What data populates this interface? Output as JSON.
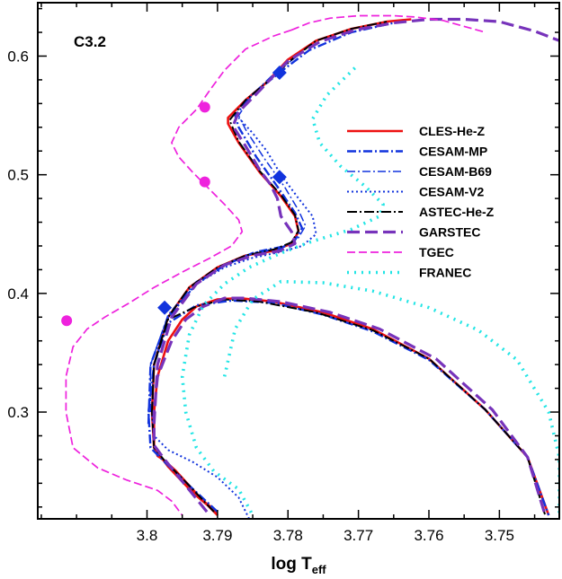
{
  "chart_data": {
    "type": "line",
    "title": "",
    "annotation": "C3.2",
    "xlabel_main": "log T",
    "xlabel_sub": "eff",
    "ylabel": "",
    "xlim": [
      3.8155,
      3.7415
    ],
    "ylim": [
      0.21,
      0.645
    ],
    "xticks": [
      3.8,
      3.79,
      3.78,
      3.77,
      3.76,
      3.75
    ],
    "xtick_labels": [
      "3.8",
      "3.79",
      "3.78",
      "3.77",
      "3.76",
      "3.75"
    ],
    "yticks": [
      0.3,
      0.4,
      0.5,
      0.6
    ],
    "ytick_labels": [
      "0.3",
      "0.4",
      "0.5",
      "0.6"
    ],
    "grid": false,
    "legend_position": "right",
    "series": [
      {
        "name": "CLES-He-Z",
        "color": "#ee1111",
        "dash": "",
        "width": 2.6,
        "points": [
          [
            3.79,
            0.213
          ],
          [
            3.7905,
            0.218
          ],
          [
            3.792,
            0.225
          ],
          [
            3.794,
            0.238
          ],
          [
            3.796,
            0.251
          ],
          [
            3.7975,
            0.259
          ],
          [
            3.7985,
            0.263
          ],
          [
            3.799,
            0.272
          ],
          [
            3.799,
            0.3
          ],
          [
            3.7985,
            0.33
          ],
          [
            3.797,
            0.36
          ],
          [
            3.795,
            0.378
          ],
          [
            3.793,
            0.389
          ],
          [
            3.79,
            0.395
          ],
          [
            3.787,
            0.396
          ],
          [
            3.782,
            0.393
          ],
          [
            3.775,
            0.384
          ],
          [
            3.768,
            0.37
          ],
          [
            3.76,
            0.345
          ],
          [
            3.752,
            0.302
          ],
          [
            3.746,
            0.262
          ],
          [
            3.743,
            0.213
          ],
          null,
          [
            3.79,
            0.213
          ],
          [
            3.7915,
            0.222
          ],
          [
            3.7935,
            0.232
          ],
          [
            3.797,
            0.254
          ],
          [
            3.799,
            0.27
          ],
          [
            3.7993,
            0.3
          ],
          [
            3.799,
            0.34
          ],
          [
            3.797,
            0.38
          ],
          [
            3.794,
            0.405
          ],
          [
            3.79,
            0.422
          ],
          [
            3.786,
            0.432
          ],
          [
            3.782,
            0.436
          ],
          [
            3.7795,
            0.442
          ],
          [
            3.7785,
            0.452
          ],
          [
            3.779,
            0.465
          ],
          [
            3.781,
            0.482
          ],
          [
            3.784,
            0.502
          ],
          [
            3.787,
            0.527
          ],
          [
            3.7885,
            0.543
          ],
          [
            3.7885,
            0.548
          ],
          [
            3.786,
            0.563
          ],
          [
            3.783,
            0.578
          ],
          [
            3.78,
            0.597
          ],
          [
            3.776,
            0.613
          ],
          [
            3.771,
            0.623
          ],
          [
            3.766,
            0.629
          ],
          [
            3.7625,
            0.631
          ]
        ]
      },
      {
        "name": "CESAM-MP",
        "color": "#1133dd",
        "dash": "10,3,2,3",
        "width": 2.4,
        "points": [
          [
            3.79,
            0.216
          ],
          [
            3.794,
            0.238
          ],
          [
            3.7975,
            0.258
          ],
          [
            3.7995,
            0.27
          ],
          [
            3.7998,
            0.3
          ],
          [
            3.799,
            0.34
          ],
          [
            3.797,
            0.375
          ],
          [
            3.793,
            0.39
          ],
          [
            3.788,
            0.394
          ],
          [
            3.782,
            0.392
          ],
          [
            3.775,
            0.382
          ],
          [
            3.768,
            0.368
          ],
          [
            3.76,
            0.344
          ],
          [
            3.752,
            0.302
          ],
          [
            3.746,
            0.262
          ],
          [
            3.743,
            0.213
          ],
          null,
          [
            3.7998,
            0.29
          ],
          [
            3.7995,
            0.34
          ],
          [
            3.797,
            0.38
          ],
          [
            3.793,
            0.408
          ],
          [
            3.789,
            0.424
          ],
          [
            3.785,
            0.434
          ],
          [
            3.781,
            0.438
          ],
          [
            3.779,
            0.445
          ],
          [
            3.778,
            0.455
          ],
          [
            3.779,
            0.468
          ],
          [
            3.7815,
            0.49
          ],
          [
            3.7845,
            0.515
          ],
          [
            3.787,
            0.54
          ],
          [
            3.7875,
            0.55
          ],
          [
            3.785,
            0.568
          ],
          [
            3.781,
            0.587
          ],
          [
            3.777,
            0.605
          ],
          [
            3.771,
            0.62
          ],
          [
            3.765,
            0.628
          ]
        ]
      },
      {
        "name": "CESAM-B69",
        "color": "#1133dd",
        "dash": "9,3,2,3",
        "width": 1.5,
        "points": [
          [
            3.7995,
            0.3
          ],
          [
            3.7995,
            0.34
          ],
          [
            3.797,
            0.382
          ],
          [
            3.793,
            0.41
          ],
          [
            3.788,
            0.426
          ],
          [
            3.784,
            0.436
          ],
          [
            3.7805,
            0.44
          ],
          [
            3.7785,
            0.447
          ],
          [
            3.7775,
            0.457
          ],
          [
            3.7785,
            0.47
          ],
          [
            3.7805,
            0.49
          ],
          [
            3.7835,
            0.515
          ],
          [
            3.786,
            0.538
          ],
          [
            3.787,
            0.55
          ],
          [
            3.785,
            0.568
          ],
          [
            3.782,
            0.585
          ],
          [
            3.778,
            0.603
          ]
        ]
      },
      {
        "name": "CESAM-V2",
        "color": "#1133dd",
        "dash": "2,3",
        "width": 2,
        "points": [
          [
            3.7855,
            0.21
          ],
          [
            3.787,
            0.228
          ],
          [
            3.79,
            0.245
          ],
          [
            3.7935,
            0.258
          ],
          [
            3.797,
            0.268
          ],
          [
            3.799,
            0.28
          ],
          [
            3.7993,
            0.3
          ],
          [
            3.799,
            0.34
          ],
          [
            3.797,
            0.38
          ],
          [
            3.793,
            0.408
          ],
          [
            3.789,
            0.422
          ],
          [
            3.785,
            0.43
          ],
          [
            3.781,
            0.435
          ],
          [
            3.778,
            0.44
          ],
          [
            3.776,
            0.45
          ],
          [
            3.7765,
            0.465
          ],
          [
            3.7785,
            0.48
          ],
          [
            3.781,
            0.5
          ],
          [
            3.783,
            0.52
          ],
          [
            3.785,
            0.535
          ],
          [
            3.787,
            0.548
          ]
        ]
      },
      {
        "name": "ASTEC-He-Z",
        "color": "#000000",
        "dash": "11,3,2,3",
        "width": 2,
        "points": [
          [
            3.7905,
            0.216
          ],
          [
            3.794,
            0.238
          ],
          [
            3.7975,
            0.259
          ],
          [
            3.799,
            0.27
          ],
          [
            3.7993,
            0.3
          ],
          [
            3.799,
            0.34
          ],
          [
            3.797,
            0.378
          ],
          [
            3.793,
            0.389
          ],
          [
            3.789,
            0.395
          ],
          [
            3.784,
            0.393
          ],
          [
            3.776,
            0.384
          ],
          [
            3.768,
            0.369
          ],
          [
            3.76,
            0.345
          ],
          [
            3.752,
            0.302
          ],
          [
            3.746,
            0.262
          ],
          [
            3.7435,
            0.213
          ],
          null,
          [
            3.7993,
            0.3
          ],
          [
            3.799,
            0.34
          ],
          [
            3.797,
            0.38
          ],
          [
            3.794,
            0.405
          ],
          [
            3.79,
            0.422
          ],
          [
            3.786,
            0.432
          ],
          [
            3.782,
            0.437
          ],
          [
            3.7795,
            0.443
          ],
          [
            3.7785,
            0.453
          ],
          [
            3.779,
            0.466
          ],
          [
            3.781,
            0.483
          ],
          [
            3.784,
            0.503
          ],
          [
            3.787,
            0.528
          ],
          [
            3.7883,
            0.546
          ],
          [
            3.786,
            0.563
          ],
          [
            3.783,
            0.578
          ],
          [
            3.7795,
            0.597
          ],
          [
            3.776,
            0.613
          ],
          [
            3.771,
            0.623
          ],
          [
            3.766,
            0.629
          ]
        ]
      },
      {
        "name": "GARSTEC",
        "color": "#7733bb",
        "dash": "14,6",
        "width": 3.2,
        "points": [
          [
            3.7915,
            0.216
          ],
          [
            3.7945,
            0.238
          ],
          [
            3.7975,
            0.26
          ],
          [
            3.799,
            0.272
          ],
          [
            3.799,
            0.3
          ],
          [
            3.7985,
            0.33
          ],
          [
            3.7965,
            0.36
          ],
          [
            3.7945,
            0.378
          ],
          [
            3.792,
            0.389
          ],
          [
            3.789,
            0.396
          ],
          [
            3.786,
            0.396
          ],
          [
            3.781,
            0.393
          ],
          [
            3.774,
            0.384
          ],
          [
            3.767,
            0.37
          ],
          [
            3.759,
            0.345
          ],
          [
            3.751,
            0.302
          ],
          [
            3.746,
            0.262
          ],
          [
            3.7435,
            0.213
          ],
          null,
          [
            3.799,
            0.29
          ],
          [
            3.7985,
            0.34
          ],
          [
            3.7965,
            0.38
          ],
          [
            3.793,
            0.408
          ],
          [
            3.789,
            0.424
          ],
          [
            3.785,
            0.432
          ],
          [
            3.781,
            0.436
          ],
          [
            3.779,
            0.442
          ],
          [
            3.7795,
            0.452
          ],
          [
            3.781,
            0.465
          ],
          [
            3.7815,
            0.48
          ],
          [
            3.7825,
            0.492
          ],
          [
            3.784,
            0.504
          ],
          [
            3.786,
            0.524
          ],
          [
            3.7878,
            0.541
          ],
          [
            3.787,
            0.553
          ],
          [
            3.784,
            0.571
          ],
          [
            3.78,
            0.596
          ],
          [
            3.7755,
            0.612
          ],
          [
            3.7705,
            0.622
          ],
          [
            3.765,
            0.628
          ],
          [
            3.76,
            0.631
          ],
          [
            3.755,
            0.631
          ],
          [
            3.75,
            0.629
          ],
          [
            3.745,
            0.621
          ],
          [
            3.7415,
            0.613
          ]
        ]
      },
      {
        "name": "TGEC",
        "color": "#ee22dd",
        "dash": "9,4",
        "width": 1.7,
        "points": [
          [
            3.7795,
            0.622
          ],
          [
            3.777,
            0.628
          ],
          [
            3.774,
            0.632
          ],
          [
            3.77,
            0.634
          ],
          [
            3.765,
            0.634
          ],
          [
            3.762,
            0.633
          ],
          [
            3.758,
            0.63
          ],
          [
            3.752,
            0.62
          ],
          null,
          [
            3.7795,
            0.622
          ],
          [
            3.782,
            0.617
          ],
          [
            3.786,
            0.606
          ],
          [
            3.789,
            0.588
          ],
          [
            3.791,
            0.572
          ],
          [
            3.793,
            0.555
          ],
          [
            3.7955,
            0.54
          ],
          [
            3.7965,
            0.527
          ],
          [
            3.7955,
            0.515
          ],
          [
            3.7935,
            0.502
          ],
          [
            3.7915,
            0.49
          ],
          [
            3.789,
            0.475
          ],
          [
            3.787,
            0.462
          ],
          [
            3.7865,
            0.452
          ],
          [
            3.788,
            0.44
          ],
          [
            3.791,
            0.43
          ],
          [
            3.795,
            0.418
          ],
          [
            3.799,
            0.405
          ],
          [
            3.8025,
            0.392
          ],
          [
            3.806,
            0.38
          ],
          [
            3.8085,
            0.37
          ],
          [
            3.8105,
            0.355
          ],
          [
            3.8115,
            0.33
          ],
          [
            3.8115,
            0.3
          ],
          [
            3.8105,
            0.27
          ],
          [
            3.807,
            0.253
          ],
          [
            3.803,
            0.243
          ],
          [
            3.7985,
            0.234
          ],
          [
            3.7965,
            0.225
          ],
          [
            3.795,
            0.213
          ]
        ]
      },
      {
        "name": "FRANEC",
        "color": "#22e5e5",
        "dash": "2,6",
        "width": 3.6,
        "points": [
          [
            3.7705,
            0.59
          ],
          [
            3.7745,
            0.567
          ],
          [
            3.7765,
            0.547
          ],
          [
            3.7755,
            0.527
          ],
          [
            3.7725,
            0.507
          ],
          [
            3.769,
            0.49
          ],
          [
            3.7665,
            0.475
          ],
          [
            3.767,
            0.465
          ],
          [
            3.771,
            0.454
          ],
          [
            3.777,
            0.443
          ],
          [
            3.781,
            0.434
          ],
          [
            3.7855,
            0.422
          ],
          [
            3.789,
            0.408
          ],
          [
            3.792,
            0.39
          ],
          [
            3.794,
            0.365
          ],
          [
            3.795,
            0.33
          ],
          [
            3.7945,
            0.3
          ],
          [
            3.793,
            0.27
          ],
          [
            3.7905,
            0.25
          ],
          [
            3.787,
            0.235
          ],
          [
            3.785,
            0.213
          ],
          null,
          [
            3.789,
            0.33
          ],
          [
            3.7875,
            0.37
          ],
          [
            3.785,
            0.395
          ],
          [
            3.781,
            0.41
          ],
          [
            3.775,
            0.409
          ],
          [
            3.768,
            0.402
          ],
          [
            3.76,
            0.388
          ],
          [
            3.753,
            0.369
          ],
          [
            3.7475,
            0.344
          ],
          [
            3.743,
            0.3
          ],
          [
            3.7415,
            0.262
          ],
          [
            3.7415,
            0.215
          ]
        ]
      }
    ],
    "markers": [
      {
        "series": "TGEC",
        "shape": "circle",
        "color": "#ee22dd",
        "points": [
          [
            3.7918,
            0.557
          ],
          [
            3.7918,
            0.494
          ],
          [
            3.8114,
            0.377
          ]
        ]
      },
      {
        "series": "CESAM-MP",
        "shape": "diamond",
        "color": "#1133dd",
        "points": [
          [
            3.7812,
            0.586
          ],
          [
            3.7812,
            0.498
          ],
          [
            3.7975,
            0.388
          ]
        ]
      }
    ]
  }
}
